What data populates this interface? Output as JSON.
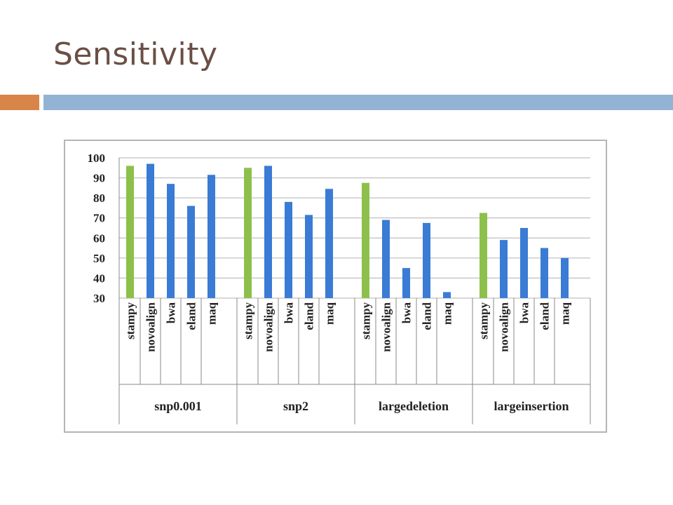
{
  "slide": {
    "title": "Sensitivity",
    "accent_colors": {
      "orange": "#d9854a",
      "blue": "#93b3d4"
    }
  },
  "chart_data": {
    "type": "bar",
    "ylim": [
      30,
      100
    ],
    "yticks": [
      100,
      90,
      80,
      70,
      60,
      50,
      40,
      30
    ],
    "grid": true,
    "colors": {
      "stampy": "#8cc04b",
      "other": "#3a7bd5"
    },
    "groups": [
      {
        "name": "snp0.001",
        "categories": [
          "stampy",
          "novoalign",
          "bwa",
          "eland",
          "maq"
        ],
        "values": [
          96,
          97,
          87,
          76,
          91.5
        ]
      },
      {
        "name": "snp2",
        "categories": [
          "stampy",
          "novoalign",
          "bwa",
          "eland",
          "maq"
        ],
        "values": [
          95,
          96,
          78,
          71.5,
          84.5
        ]
      },
      {
        "name": "largedeletion",
        "categories": [
          "stampy",
          "novoalign",
          "bwa",
          "eland",
          "maq"
        ],
        "values": [
          87.5,
          69,
          45,
          67.5,
          33
        ]
      },
      {
        "name": "largeinsertion",
        "categories": [
          "stampy",
          "novoalign",
          "bwa",
          "eland",
          "maq"
        ],
        "values": [
          72.5,
          59,
          65,
          55,
          50
        ]
      }
    ]
  }
}
